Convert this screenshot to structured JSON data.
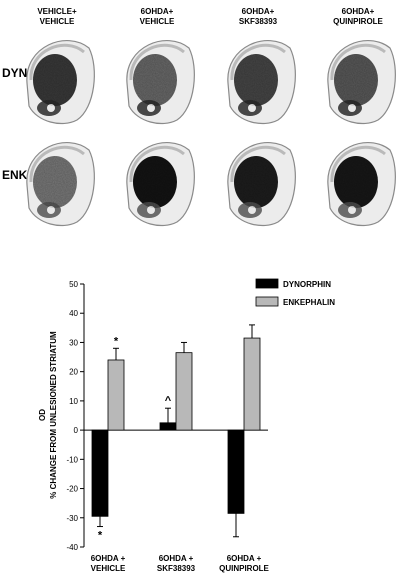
{
  "columns": [
    {
      "line1": "VEHICLE+",
      "line2": "VEHICLE"
    },
    {
      "line1": "6OHDA+",
      "line2": "VEHICLE"
    },
    {
      "line1": "6OHDA+",
      "line2": "SKF38393"
    },
    {
      "line1": "6OHDA+",
      "line2": "QUINPIROLE"
    }
  ],
  "rows": [
    {
      "label": "DYN"
    },
    {
      "label": "ENK"
    }
  ],
  "chart_data": {
    "type": "bar",
    "categories": [
      [
        "6OHDA +",
        "VEHICLE"
      ],
      [
        "6OHDA +",
        "SKF38393"
      ],
      [
        "6OHDA +",
        "QUINPIROLE"
      ]
    ],
    "series": [
      {
        "name": "DYNORPHIN",
        "color": "#000000",
        "values": [
          -29.5,
          2.5,
          -28.5
        ],
        "errors": [
          3.5,
          5.0,
          8.0
        ]
      },
      {
        "name": "ENKEPHALIN",
        "color": "#b8b8b8",
        "values": [
          24.0,
          26.5,
          31.5
        ],
        "errors": [
          4.0,
          3.5,
          4.5
        ]
      }
    ],
    "ylabel_line1": "OD",
    "ylabel_line2": "% CHANGE FROM UNLESIONED STRIATUM",
    "ylim": [
      -40,
      50
    ],
    "yticks": [
      "-40",
      "-30",
      "-20",
      "-10",
      "0",
      "10",
      "20",
      "30",
      "40",
      "50"
    ],
    "annotations": [
      {
        "text": "*",
        "category": 0,
        "series": 1,
        "position": "above"
      },
      {
        "text": "*",
        "category": 0,
        "series": 0,
        "position": "below"
      },
      {
        "text": "^",
        "category": 1,
        "series": 0,
        "position": "above"
      }
    ],
    "legend_position": "top-right",
    "grid": false
  }
}
